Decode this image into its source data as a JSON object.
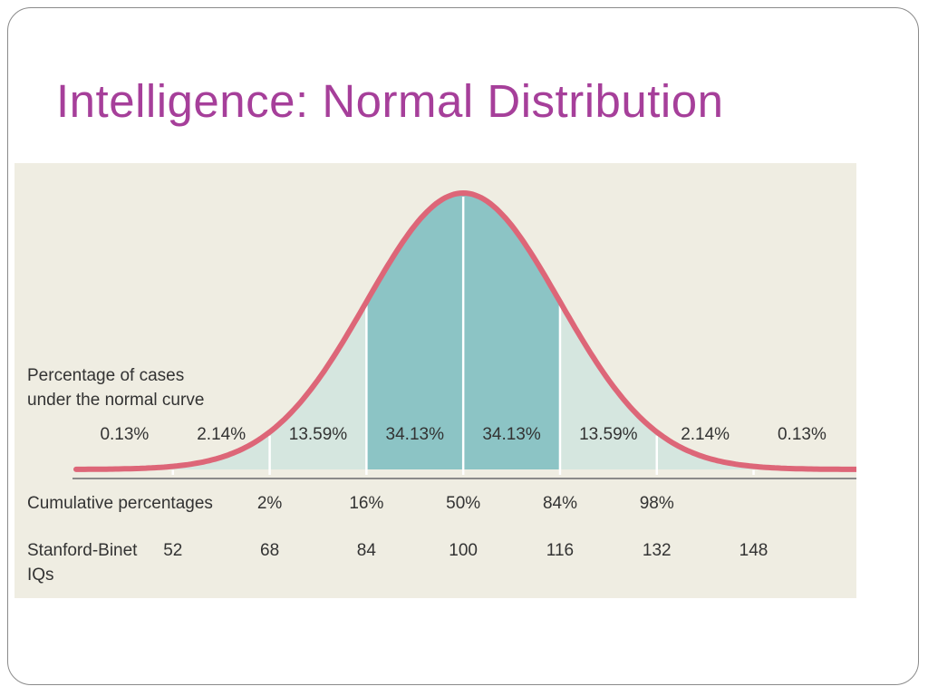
{
  "slide": {
    "title": "Intelligence:  Normal Distribution"
  },
  "colors": {
    "title": "#a63f9a",
    "panel_background": "#efede2",
    "curve_stroke": "#dd6678",
    "fill_center": "#8cc4c5",
    "fill_outer": "#d5e6df",
    "baseline": "#8a8a8a",
    "divider": "#ffffff",
    "text": "#333333"
  },
  "chart_data": {
    "type": "area",
    "title": "",
    "distribution": {
      "mean": 100,
      "sd": 16
    },
    "x_scale": "Stanford-Binet IQs",
    "xlim": [
      36,
      165
    ],
    "section_boundaries": [
      52,
      68,
      84,
      100,
      116,
      132,
      148
    ],
    "section_label_caption": [
      "Percentage of cases",
      "under the normal curve"
    ],
    "section_percentages": [
      {
        "label": "0.13%",
        "x": 44
      },
      {
        "label": "2.14%",
        "x": 60
      },
      {
        "label": "13.59%",
        "x": 76
      },
      {
        "label": "34.13%",
        "x": 92
      },
      {
        "label": "34.13%",
        "x": 108
      },
      {
        "label": "13.59%",
        "x": 124
      },
      {
        "label": "2.14%",
        "x": 140
      },
      {
        "label": "0.13%",
        "x": 156
      }
    ],
    "cumulative_label": "Cumulative percentages",
    "cumulative_percentages": [
      {
        "label": "2%",
        "x": 68
      },
      {
        "label": "16%",
        "x": 84
      },
      {
        "label": "50%",
        "x": 100
      },
      {
        "label": "84%",
        "x": 116
      },
      {
        "label": "98%",
        "x": 132
      }
    ],
    "iq_label": [
      "Stanford-Binet",
      "IQs"
    ],
    "iq_values": [
      {
        "label": "52",
        "x": 52
      },
      {
        "label": "68",
        "x": 68
      },
      {
        "label": "84",
        "x": 84
      },
      {
        "label": "100",
        "x": 100
      },
      {
        "label": "116",
        "x": 116
      },
      {
        "label": "132",
        "x": 132
      },
      {
        "label": "148",
        "x": 148
      }
    ]
  }
}
